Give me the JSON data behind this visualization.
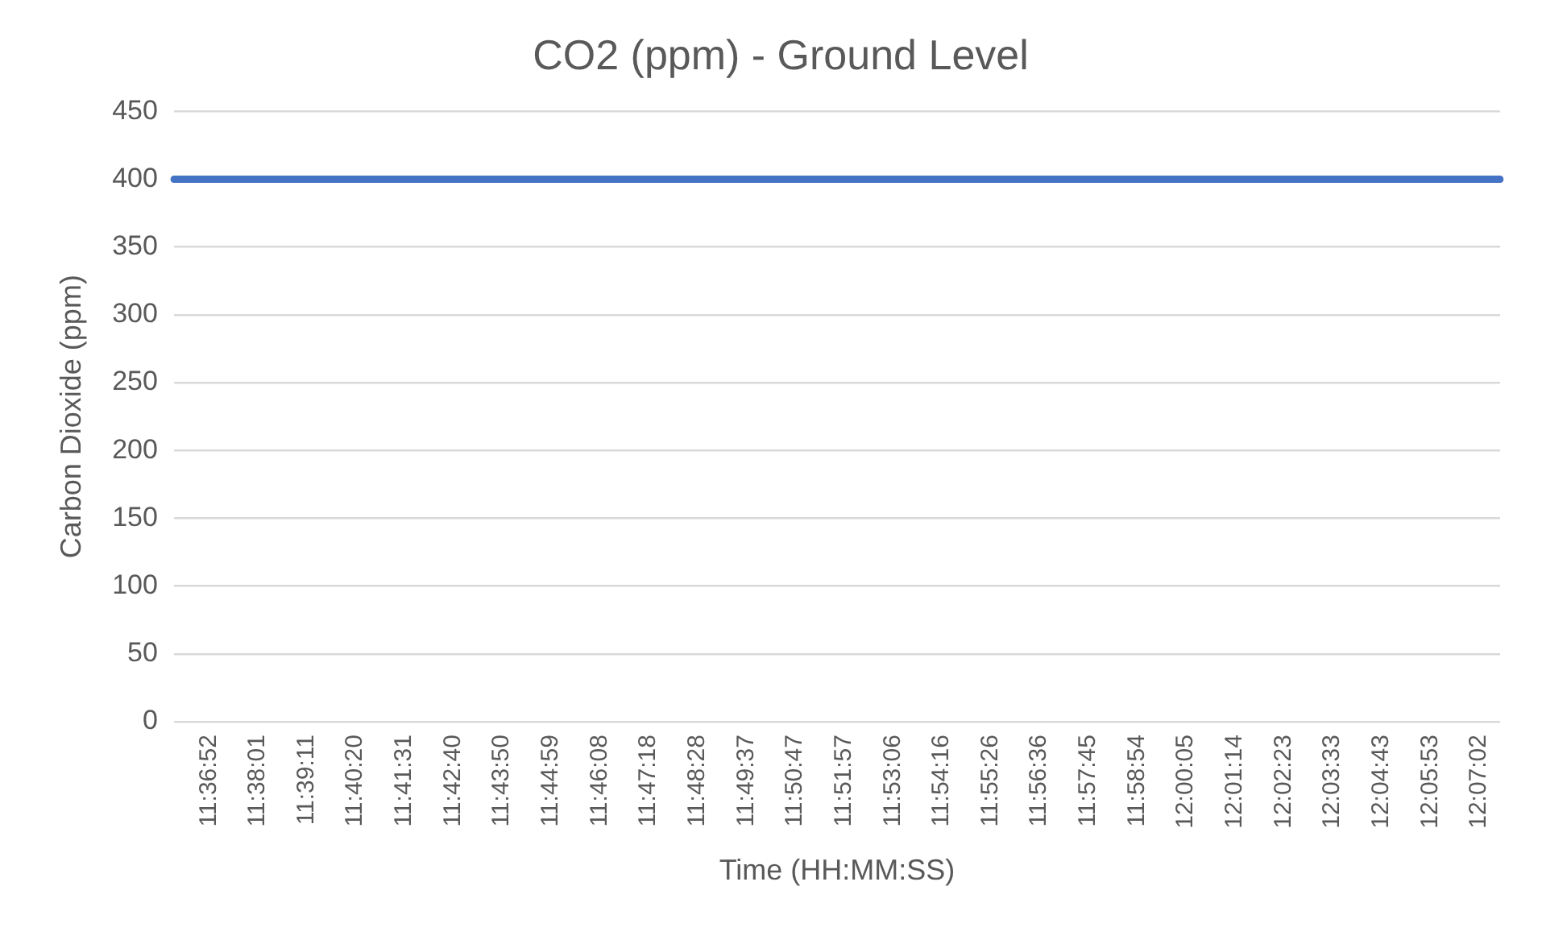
{
  "chart_data": {
    "type": "line",
    "title": "CO2 (ppm) - Ground Level",
    "xlabel": "Time (HH:MM:SS)",
    "ylabel": "Carbon Dioxide (ppm)",
    "categories": [
      null,
      null,
      null,
      null,
      null,
      "11:36:52",
      null,
      null,
      null,
      null,
      null,
      null,
      "11:38:01",
      null,
      null,
      null,
      null,
      null,
      null,
      "11:39:11",
      null,
      null,
      null,
      null,
      null,
      null,
      "11:40:20",
      null,
      null,
      null,
      null,
      null,
      null,
      "11:41:31",
      null,
      null,
      null,
      null,
      null,
      null,
      "11:42:40",
      null,
      null,
      null,
      null,
      null,
      null,
      "11:43:50",
      null,
      null,
      null,
      null,
      null,
      null,
      "11:44:59",
      null,
      null,
      null,
      null,
      null,
      null,
      "11:46:08",
      null,
      null,
      null,
      null,
      null,
      null,
      "11:47:18",
      null,
      null,
      null,
      null,
      null,
      null,
      "11:48:28",
      null,
      null,
      null,
      null,
      null,
      null,
      "11:49:37",
      null,
      null,
      null,
      null,
      null,
      null,
      "11:50:47",
      null,
      null,
      null,
      null,
      null,
      null,
      "11:51:57",
      null,
      null,
      null,
      null,
      null,
      null,
      "11:53:06",
      null,
      null,
      null,
      null,
      null,
      null,
      "11:54:16",
      null,
      null,
      null,
      null,
      null,
      null,
      "11:55:26",
      null,
      null,
      null,
      null,
      null,
      null,
      "11:56:36",
      null,
      null,
      null,
      null,
      null,
      null,
      "11:57:45",
      null,
      null,
      null,
      null,
      null,
      null,
      "11:58:54",
      null,
      null,
      null,
      null,
      null,
      null,
      "12:00:05",
      null,
      null,
      null,
      null,
      null,
      null,
      "12:01:14",
      null,
      null,
      null,
      null,
      null,
      null,
      "12:02:23",
      null,
      null,
      null,
      null,
      null,
      null,
      "12:03:33",
      null,
      null,
      null,
      null,
      null,
      null,
      "12:04:43",
      null,
      null,
      null,
      null,
      null,
      null,
      "12:05:53",
      null,
      null,
      null,
      null,
      null,
      null,
      "12:07:02",
      null,
      null,
      null
    ],
    "series": [
      {
        "color": "#4472c4",
        "values": [
          400,
          400,
          400,
          400,
          400,
          400,
          400,
          400,
          400,
          400,
          400,
          400,
          400,
          400,
          400,
          400,
          400,
          400,
          400,
          400,
          400,
          400,
          400,
          400,
          400,
          400,
          400,
          400,
          400,
          400,
          400,
          400,
          400,
          400,
          400,
          400,
          400,
          400,
          400,
          400,
          400,
          400,
          400,
          400,
          400,
          400,
          400,
          400,
          400,
          400,
          400,
          400,
          400,
          400,
          400,
          400,
          400,
          400,
          400,
          400,
          400,
          400,
          400,
          400,
          400,
          400,
          400,
          400,
          400,
          400,
          400,
          400,
          400,
          400,
          400,
          400,
          400,
          400,
          400,
          400,
          400,
          400,
          400,
          400,
          400,
          400,
          400,
          400,
          400,
          400,
          400,
          400,
          400,
          400,
          400,
          400,
          400,
          400,
          400,
          400,
          400,
          400,
          400,
          400,
          400,
          400,
          400,
          400,
          400,
          400,
          400,
          400,
          400,
          400,
          400,
          400,
          400,
          400,
          400,
          400,
          400,
          400,
          400,
          400,
          400,
          400,
          400,
          400,
          400,
          400,
          400,
          400,
          400,
          400,
          400,
          400,
          400,
          400,
          400,
          400,
          400,
          400,
          400,
          400,
          400,
          400,
          400,
          400,
          400,
          400,
          400,
          400,
          400,
          400,
          400,
          400,
          400,
          400,
          400,
          400,
          400,
          400,
          400,
          400,
          400,
          400,
          400,
          400,
          400,
          400,
          400,
          400,
          400,
          400,
          400,
          400,
          400,
          400,
          400,
          400,
          400,
          400,
          400,
          400,
          400,
          400,
          400,
          400,
          400,
          400,
          400
        ]
      }
    ],
    "ylim": [
      0,
      450
    ],
    "yticks": [
      0,
      50,
      100,
      150,
      200,
      250,
      300,
      350,
      400,
      450
    ],
    "grid": "y",
    "legend": false,
    "marker": "none",
    "line_style": "solid"
  }
}
